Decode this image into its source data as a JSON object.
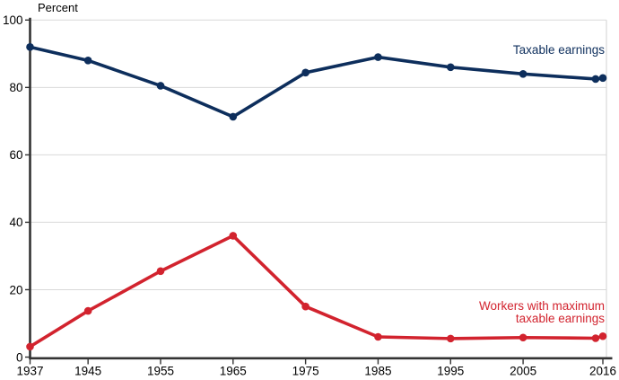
{
  "window": {
    "background": "#ffffff"
  },
  "chart_data": {
    "type": "line",
    "title": "",
    "ylabel": "Percent",
    "xlabel": "",
    "xlim": [
      1937,
      2016
    ],
    "ylim": [
      0,
      100
    ],
    "grid": "horizontal",
    "grid_color": "#d9d9d9",
    "axis_color": "#333333",
    "tick_label_color": "#000000",
    "x": [
      1937,
      1945,
      1955,
      1965,
      1975,
      1985,
      1995,
      2005,
      2015,
      2016
    ],
    "xtick_years": [
      1937,
      1945,
      1955,
      1965,
      1975,
      1985,
      1995,
      2005,
      2016
    ],
    "xtick_labels": [
      "1937",
      "1945",
      "1955",
      "1965",
      "1975",
      "1985",
      "1995",
      "2005",
      "2016"
    ],
    "yticks": [
      0,
      20,
      40,
      60,
      80,
      100
    ],
    "ytick_labels": [
      "0",
      "20",
      "40",
      "60",
      "80",
      "100"
    ],
    "series": [
      {
        "name": "Taxable earnings",
        "color": "#0d2e5c",
        "values": [
          92,
          88,
          80.5,
          71.3,
          84.4,
          89,
          86,
          84,
          82.5,
          82.8
        ]
      },
      {
        "name": "Workers with maximum taxable earnings",
        "color": "#d2232e",
        "values": [
          3.1,
          13.7,
          25.5,
          36,
          15,
          6,
          5.5,
          5.8,
          5.6,
          6.2
        ]
      }
    ],
    "annotations": [
      {
        "lines": [
          "Taxable earnings"
        ],
        "color": "#0d2e5c",
        "align": "right"
      },
      {
        "lines": [
          "Workers with maximum",
          "taxable earnings"
        ],
        "color": "#d2232e",
        "align": "right"
      }
    ],
    "legend_position": "inline-annotations"
  }
}
